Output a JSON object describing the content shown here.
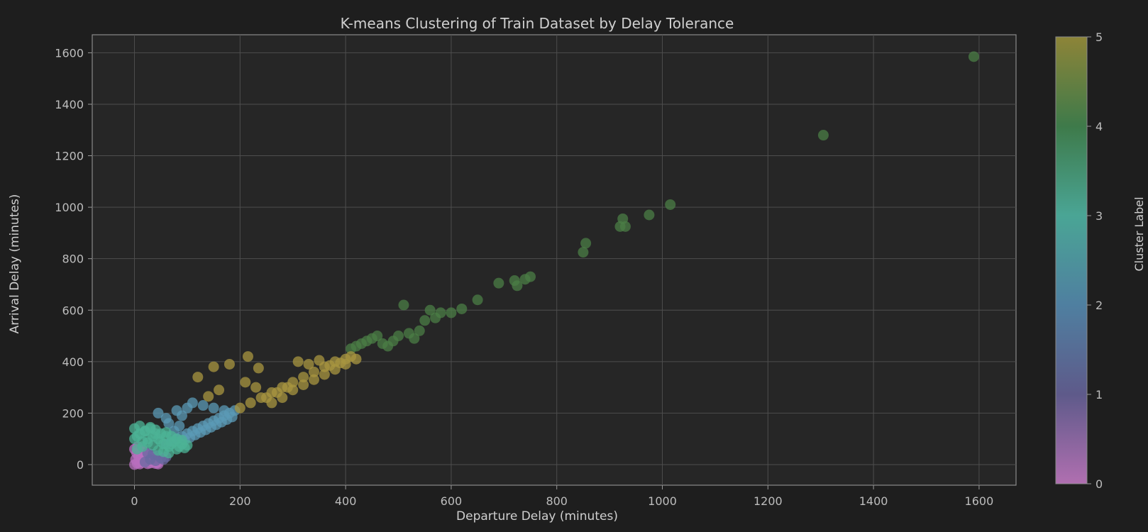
{
  "chart_data": {
    "type": "scatter",
    "title": "K-means Clustering of Train Dataset by Delay Tolerance",
    "xlabel": "Departure Delay (minutes)",
    "ylabel": "Arrival Delay (minutes)",
    "xlim": [
      -80,
      1670
    ],
    "ylim": [
      -80,
      1670
    ],
    "xticks": [
      0,
      200,
      400,
      600,
      800,
      1000,
      1200,
      1400,
      1600
    ],
    "yticks": [
      0,
      200,
      400,
      600,
      800,
      1000,
      1200,
      1400,
      1600
    ],
    "grid": true,
    "colorbar": {
      "label": "Cluster Label",
      "ticks": [
        0,
        1,
        2,
        3,
        4,
        5
      ],
      "range": [
        0,
        5
      ],
      "colors": [
        "#b06fb0",
        "#5e5a8a",
        "#4f7fa0",
        "#4aa595",
        "#3e7a4a",
        "#8d8438"
      ]
    },
    "cluster_colors": {
      "0": "#b86fbf",
      "1": "#6a6aa0",
      "2": "#5b9ab5",
      "3": "#4cb395",
      "4": "#4b7d45",
      "5": "#a89640"
    },
    "series": [
      {
        "cluster": 0,
        "x": [
          0,
          5,
          10,
          15,
          20,
          25,
          30,
          35,
          40,
          45,
          2,
          8,
          12,
          18,
          22,
          28,
          33,
          38,
          4,
          14,
          24,
          34,
          44,
          0,
          6,
          16,
          26,
          36
        ],
        "y": [
          0,
          5,
          2,
          8,
          10,
          3,
          6,
          12,
          4,
          2,
          20,
          30,
          25,
          15,
          40,
          18,
          22,
          10,
          45,
          50,
          35,
          28,
          8,
          60,
          70,
          55,
          42,
          30
        ]
      },
      {
        "cluster": 1,
        "x": [
          20,
          30,
          40,
          50,
          60,
          35,
          45,
          55,
          25
        ],
        "y": [
          10,
          20,
          15,
          25,
          30,
          40,
          35,
          20,
          45
        ]
      },
      {
        "cluster": 2,
        "x": [
          60,
          70,
          80,
          90,
          100,
          110,
          120,
          130,
          140,
          150,
          160,
          170,
          180,
          190,
          95,
          105,
          115,
          125,
          135,
          145,
          155,
          165,
          175,
          185,
          75,
          85,
          45,
          60,
          80,
          100,
          110,
          130,
          150,
          170,
          65,
          90
        ],
        "y": [
          80,
          90,
          100,
          110,
          120,
          130,
          140,
          150,
          160,
          170,
          180,
          190,
          200,
          210,
          95,
          105,
          115,
          125,
          135,
          145,
          155,
          165,
          175,
          185,
          130,
          150,
          200,
          180,
          210,
          220,
          240,
          230,
          220,
          210,
          160,
          190
        ]
      },
      {
        "cluster": 3,
        "x": [
          0,
          5,
          10,
          15,
          20,
          25,
          30,
          35,
          40,
          45,
          50,
          55,
          60,
          65,
          70,
          75,
          80,
          85,
          90,
          95,
          100,
          0,
          10,
          20,
          30,
          40,
          50,
          60,
          70,
          80,
          90,
          5,
          15,
          25,
          35,
          45,
          55,
          65
        ],
        "y": [
          100,
          110,
          120,
          90,
          130,
          100,
          140,
          110,
          120,
          100,
          90,
          80,
          110,
          70,
          80,
          90,
          60,
          70,
          80,
          65,
          75,
          140,
          150,
          130,
          145,
          135,
          120,
          125,
          110,
          100,
          95,
          60,
          70,
          85,
          75,
          55,
          50,
          45
        ]
      },
      {
        "cluster": 4,
        "x": [
          410,
          420,
          430,
          440,
          450,
          460,
          470,
          480,
          490,
          500,
          510,
          520,
          530,
          540,
          550,
          560,
          570,
          580,
          600,
          620,
          650,
          690,
          720,
          725,
          740,
          750,
          850,
          855,
          920,
          925,
          930,
          975,
          1015,
          1305,
          1590
        ],
        "y": [
          450,
          460,
          470,
          480,
          490,
          500,
          470,
          460,
          480,
          500,
          620,
          510,
          490,
          520,
          560,
          600,
          570,
          590,
          590,
          605,
          640,
          705,
          715,
          695,
          720,
          730,
          825,
          860,
          925,
          955,
          925,
          970,
          1010,
          1280,
          1585
        ]
      },
      {
        "cluster": 5,
        "x": [
          200,
          220,
          240,
          260,
          280,
          300,
          320,
          340,
          360,
          380,
          400,
          410,
          310,
          330,
          350,
          370,
          390,
          250,
          270,
          290,
          230,
          210,
          120,
          150,
          180,
          215,
          235,
          160,
          140,
          300,
          320,
          340,
          360,
          380,
          400,
          420,
          260,
          280
        ],
        "y": [
          220,
          240,
          260,
          280,
          300,
          320,
          340,
          360,
          380,
          400,
          410,
          420,
          400,
          390,
          405,
          385,
          395,
          260,
          280,
          300,
          300,
          320,
          340,
          380,
          390,
          420,
          375,
          290,
          265,
          290,
          310,
          330,
          350,
          370,
          390,
          410,
          240,
          260
        ]
      }
    ]
  }
}
